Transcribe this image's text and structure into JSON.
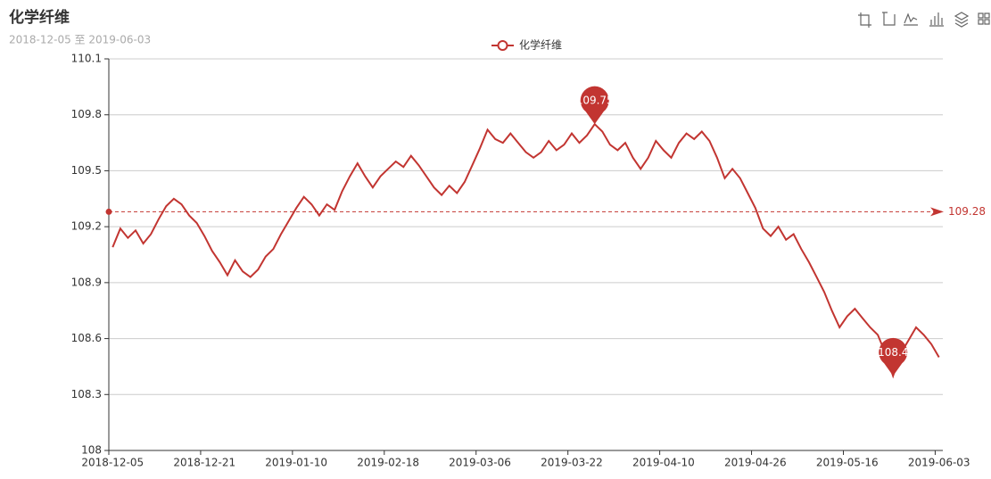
{
  "chart_data": {
    "type": "line",
    "title": "化学纤维",
    "subtitle": "2018-12-05 至 2019-06-03",
    "categories": [
      "2018-12-05",
      null,
      null,
      null,
      null,
      null,
      null,
      null,
      null,
      null,
      null,
      null,
      "2018-12-21",
      null,
      null,
      null,
      null,
      null,
      null,
      null,
      null,
      null,
      null,
      null,
      "2019-01-10",
      null,
      null,
      null,
      null,
      null,
      null,
      null,
      null,
      null,
      null,
      null,
      "2019-02-18",
      null,
      null,
      null,
      null,
      null,
      null,
      null,
      null,
      null,
      null,
      null,
      "2019-03-06",
      null,
      null,
      null,
      null,
      null,
      null,
      null,
      null,
      null,
      null,
      null,
      "2019-03-22",
      null,
      null,
      null,
      null,
      null,
      null,
      null,
      null,
      null,
      null,
      null,
      "2019-04-10",
      null,
      null,
      null,
      null,
      null,
      null,
      null,
      null,
      null,
      null,
      null,
      "2019-04-26",
      null,
      null,
      null,
      null,
      null,
      null,
      null,
      null,
      null,
      null,
      null,
      "2019-05-16",
      null,
      null,
      null,
      null,
      null,
      null,
      null,
      null,
      null,
      null,
      null,
      "2019-06-03"
    ],
    "series": [
      {
        "name": "化学纤维",
        "color": "#c23531",
        "values": [
          109.09,
          109.19,
          109.14,
          109.18,
          109.11,
          109.16,
          109.24,
          109.31,
          109.35,
          109.32,
          109.26,
          109.22,
          109.15,
          109.07,
          109.01,
          108.94,
          109.02,
          108.96,
          108.93,
          108.97,
          109.04,
          109.08,
          109.16,
          109.23,
          109.3,
          109.36,
          109.32,
          109.26,
          109.32,
          109.29,
          109.39,
          109.47,
          109.54,
          109.47,
          109.41,
          109.47,
          109.51,
          109.55,
          109.52,
          109.58,
          109.53,
          109.47,
          109.41,
          109.37,
          109.42,
          109.38,
          109.44,
          109.53,
          109.62,
          109.72,
          109.67,
          109.65,
          109.7,
          109.65,
          109.6,
          109.57,
          109.6,
          109.66,
          109.61,
          109.64,
          109.7,
          109.65,
          109.69,
          109.75,
          109.71,
          109.64,
          109.61,
          109.65,
          109.57,
          109.51,
          109.57,
          109.66,
          109.61,
          109.57,
          109.65,
          109.7,
          109.67,
          109.71,
          109.66,
          109.57,
          109.46,
          109.51,
          109.46,
          109.38,
          109.3,
          109.19,
          109.15,
          109.2,
          109.13,
          109.16,
          109.08,
          109.01,
          108.93,
          108.85,
          108.75,
          108.66,
          108.72,
          108.76,
          108.71,
          108.66,
          108.62,
          108.52,
          108.4,
          108.52,
          108.59,
          108.66,
          108.62,
          108.57,
          108.5
        ]
      }
    ],
    "max_index": 63,
    "min_index": 102,
    "average": 109.28,
    "ylim": [
      108,
      110.1
    ],
    "yticks": [
      108,
      108.3,
      108.6,
      108.9,
      109.2,
      109.5,
      109.8,
      110.1
    ],
    "grid": true
  }
}
